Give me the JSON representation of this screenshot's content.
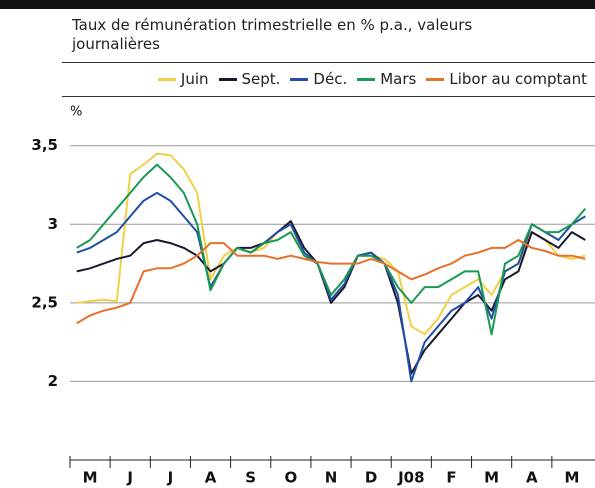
{
  "chart_data": {
    "type": "line",
    "title": "Taux de rémunération trimestrielle en % p.a., valeurs journalières",
    "y_unit": "%",
    "categories": [
      null,
      "M",
      null,
      null,
      "J",
      null,
      null,
      "J",
      null,
      null,
      "A",
      null,
      null,
      "S",
      null,
      null,
      "O",
      null,
      null,
      "N",
      null,
      null,
      "D",
      null,
      null,
      "J08",
      null,
      null,
      "F",
      null,
      null,
      "M",
      null,
      null,
      "A",
      null,
      null,
      "M",
      null
    ],
    "series": [
      {
        "name": "Juin",
        "color": "#f2cf45",
        "values": [
          2.5,
          2.51,
          2.52,
          2.51,
          3.32,
          3.38,
          3.45,
          3.44,
          3.35,
          3.2,
          2.65,
          2.8,
          2.85,
          2.82,
          2.85,
          2.95,
          3.0,
          2.8,
          2.75,
          2.55,
          2.65,
          2.8,
          2.8,
          2.78,
          2.7,
          2.35,
          2.3,
          2.4,
          2.55,
          2.6,
          2.65,
          2.55,
          2.7,
          2.75,
          2.95,
          2.9,
          2.8,
          2.78,
          2.8
        ]
      },
      {
        "name": "Sept.",
        "color": "#1a1a2e",
        "values": [
          2.7,
          2.72,
          2.75,
          2.78,
          2.8,
          2.88,
          2.9,
          2.88,
          2.85,
          2.8,
          2.7,
          2.75,
          2.85,
          2.85,
          2.88,
          2.95,
          3.02,
          2.85,
          2.75,
          2.5,
          2.6,
          2.8,
          2.82,
          2.75,
          2.5,
          2.05,
          2.2,
          2.3,
          2.4,
          2.5,
          2.55,
          2.45,
          2.65,
          2.7,
          2.95,
          2.9,
          2.85,
          2.95,
          2.9
        ]
      },
      {
        "name": "Déc.",
        "color": "#1f4fa8",
        "values": [
          2.82,
          2.85,
          2.9,
          2.95,
          3.05,
          3.15,
          3.2,
          3.15,
          3.05,
          2.95,
          2.6,
          2.75,
          2.85,
          2.82,
          2.88,
          2.95,
          3.0,
          2.82,
          2.75,
          2.52,
          2.62,
          2.8,
          2.82,
          2.75,
          2.55,
          2.0,
          2.25,
          2.35,
          2.45,
          2.5,
          2.6,
          2.4,
          2.7,
          2.75,
          3.0,
          2.95,
          2.9,
          3.0,
          3.05
        ]
      },
      {
        "name": "Mars",
        "color": "#1a9a50",
        "values": [
          2.85,
          2.9,
          3.0,
          3.1,
          3.2,
          3.3,
          3.38,
          3.3,
          3.2,
          3.0,
          2.58,
          2.75,
          2.85,
          2.82,
          2.88,
          2.9,
          2.95,
          2.8,
          2.75,
          2.55,
          2.65,
          2.8,
          2.8,
          2.75,
          2.6,
          2.5,
          2.6,
          2.6,
          2.65,
          2.7,
          2.7,
          2.3,
          2.75,
          2.8,
          3.0,
          2.95,
          2.95,
          3.0,
          3.1
        ]
      },
      {
        "name": "Libor au comptant",
        "color": "#e8702a",
        "values": [
          2.37,
          2.42,
          2.45,
          2.47,
          2.5,
          2.7,
          2.72,
          2.72,
          2.75,
          2.8,
          2.88,
          2.88,
          2.8,
          2.8,
          2.8,
          2.78,
          2.8,
          2.78,
          2.76,
          2.75,
          2.75,
          2.75,
          2.78,
          2.75,
          2.7,
          2.65,
          2.68,
          2.72,
          2.75,
          2.8,
          2.82,
          2.85,
          2.85,
          2.9,
          2.85,
          2.83,
          2.8,
          2.8,
          2.78
        ]
      }
    ],
    "ylim": [
      1.5,
      3.6
    ],
    "yticks": [
      2,
      {
        "value": 2.5,
        "label": "2,5"
      },
      3,
      {
        "value": 3.5,
        "label": "3,5"
      }
    ],
    "grid": true
  }
}
